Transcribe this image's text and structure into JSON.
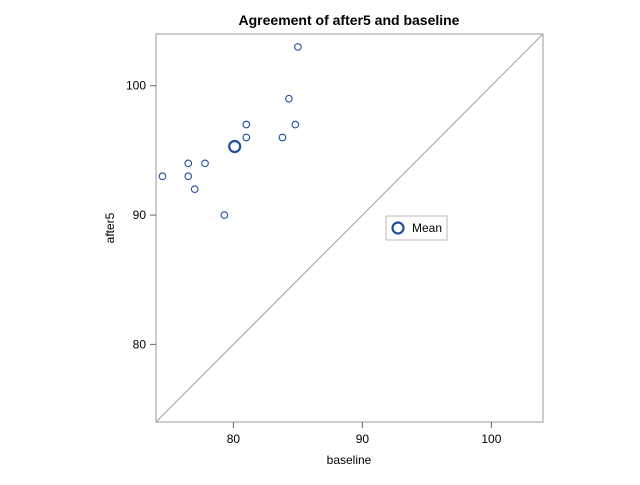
{
  "chart_data": {
    "type": "scatter",
    "title": "Agreement of after5 and baseline",
    "xlabel": "baseline",
    "ylabel": "after5",
    "xlim": [
      74,
      104
    ],
    "ylim": [
      74,
      104
    ],
    "x_ticks": [
      80,
      90,
      100
    ],
    "y_ticks": [
      80,
      90,
      100
    ],
    "grid": false,
    "identity_line": true,
    "series": [
      {
        "points": [
          {
            "x": 74.5,
            "y": 93
          },
          {
            "x": 76.5,
            "y": 94
          },
          {
            "x": 76.5,
            "y": 93
          },
          {
            "x": 77,
            "y": 92
          },
          {
            "x": 77.8,
            "y": 94
          },
          {
            "x": 79.3,
            "y": 90
          },
          {
            "x": 81,
            "y": 97
          },
          {
            "x": 81,
            "y": 96
          },
          {
            "x": 83.8,
            "y": 96
          },
          {
            "x": 84.3,
            "y": 99
          },
          {
            "x": 84.8,
            "y": 97
          },
          {
            "x": 85,
            "y": 103
          }
        ]
      },
      {
        "name": "Mean",
        "points": [
          {
            "x": 80.1,
            "y": 95.3
          }
        ]
      }
    ],
    "legend": {
      "entries": [
        "Mean"
      ],
      "placement": "inside-right"
    },
    "colors": {
      "marker": "#1f4e9a",
      "identity_line": "#a0a0a0",
      "frame": "#999999"
    }
  }
}
